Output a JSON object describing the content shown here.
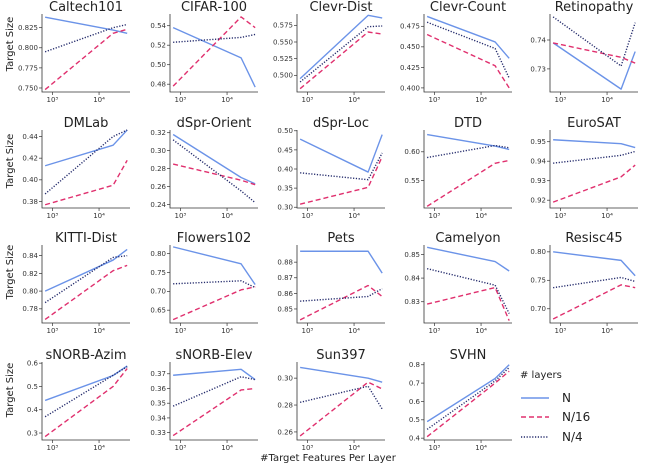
{
  "figure": {
    "ylabel": "Target Size",
    "xlabel": "#Target Features Per Layer",
    "legend_title": "# layers",
    "series": [
      {
        "name": "N",
        "color": "#6B93E8",
        "dash": ""
      },
      {
        "name": "N/16",
        "color": "#E0306E",
        "dash": "5,3"
      },
      {
        "name": "N/4",
        "color": "#232A6B",
        "dash": "1.2,1.6"
      }
    ]
  },
  "chart_data": [
    {
      "type": "line",
      "title": "Caltech101",
      "x": [
        700,
        20000,
        40000
      ],
      "xscale": "log",
      "xticks": [
        "10³",
        "10⁴"
      ],
      "xtick_values": [
        1000,
        10000
      ],
      "ylim": [
        0.745,
        0.842
      ],
      "yticks": [
        0.75,
        0.775,
        0.8,
        0.825
      ],
      "ytick_labels": [
        "0.750",
        "0.775",
        "0.800",
        "0.825"
      ],
      "series": [
        {
          "name": "N",
          "values": [
            0.838,
            0.822,
            0.818
          ]
        },
        {
          "name": "N/16",
          "values": [
            0.748,
            0.818,
            0.823
          ]
        },
        {
          "name": "N/4",
          "values": [
            0.795,
            0.825,
            0.829
          ]
        }
      ]
    },
    {
      "type": "line",
      "title": "CIFAR-100",
      "x": [
        700,
        20000,
        40000
      ],
      "xscale": "log",
      "xticks": [
        "10³",
        "10⁴"
      ],
      "xtick_values": [
        1000,
        10000
      ],
      "ylim": [
        0.472,
        0.552
      ],
      "yticks": [
        0.48,
        0.5,
        0.52,
        0.54
      ],
      "ytick_labels": [
        "0.48",
        "0.50",
        "0.52",
        "0.54"
      ],
      "series": [
        {
          "name": "N",
          "values": [
            0.538,
            0.507,
            0.477
          ]
        },
        {
          "name": "N/16",
          "values": [
            0.478,
            0.549,
            0.538
          ]
        },
        {
          "name": "N/4",
          "values": [
            0.523,
            0.528,
            0.531
          ]
        }
      ]
    },
    {
      "type": "line",
      "title": "Clevr-Dist",
      "x": [
        700,
        20000,
        40000
      ],
      "xscale": "log",
      "xticks": [
        "10³",
        "10⁴"
      ],
      "xtick_values": [
        1000,
        10000
      ],
      "ylim": [
        0.475,
        0.592
      ],
      "yticks": [
        0.5,
        0.525,
        0.55,
        0.575
      ],
      "ytick_labels": [
        "0.500",
        "0.525",
        "0.550",
        "0.575"
      ],
      "series": [
        {
          "name": "N",
          "values": [
            0.495,
            0.59,
            0.586
          ]
        },
        {
          "name": "N/16",
          "values": [
            0.48,
            0.565,
            0.562
          ]
        },
        {
          "name": "N/4",
          "values": [
            0.49,
            0.573,
            0.574
          ]
        }
      ]
    },
    {
      "type": "line",
      "title": "Clevr-Count",
      "x": [
        700,
        20000,
        40000
      ],
      "xscale": "log",
      "xticks": [
        "10³",
        "10⁴"
      ],
      "xtick_values": [
        1000,
        10000
      ],
      "ylim": [
        0.395,
        0.49
      ],
      "yticks": [
        0.4,
        0.425,
        0.45,
        0.475
      ],
      "ytick_labels": [
        "0.400",
        "0.425",
        "0.450",
        "0.475"
      ],
      "series": [
        {
          "name": "N",
          "values": [
            0.487,
            0.456,
            0.436
          ]
        },
        {
          "name": "N/16",
          "values": [
            0.465,
            0.427,
            0.4
          ]
        },
        {
          "name": "N/4",
          "values": [
            0.48,
            0.448,
            0.412
          ]
        }
      ]
    },
    {
      "type": "line",
      "title": "Retinopathy",
      "x": [
        700,
        20000,
        40000
      ],
      "xscale": "log",
      "xticks": [
        "10³",
        "10⁴"
      ],
      "xtick_values": [
        1000,
        10000
      ],
      "ylim": [
        0.722,
        0.749
      ],
      "yticks": [
        0.73,
        0.74
      ],
      "ytick_labels": [
        "0.73",
        "0.74"
      ],
      "series": [
        {
          "name": "N",
          "values": [
            0.739,
            0.723,
            0.736
          ]
        },
        {
          "name": "N/16",
          "values": [
            0.739,
            0.734,
            0.732
          ]
        },
        {
          "name": "N/4",
          "values": [
            0.748,
            0.731,
            0.746
          ]
        }
      ]
    },
    {
      "type": "line",
      "title": "DMLab",
      "x": [
        700,
        20000,
        40000
      ],
      "xscale": "log",
      "xticks": [
        "10³",
        "10⁴"
      ],
      "xtick_values": [
        1000,
        10000
      ],
      "ylim": [
        0.374,
        0.446
      ],
      "yticks": [
        0.38,
        0.4,
        0.42,
        0.44
      ],
      "ytick_labels": [
        "0.38",
        "0.40",
        "0.42",
        "0.44"
      ],
      "series": [
        {
          "name": "N",
          "values": [
            0.413,
            0.432,
            0.446
          ]
        },
        {
          "name": "N/16",
          "values": [
            0.377,
            0.395,
            0.418
          ]
        },
        {
          "name": "N/4",
          "values": [
            0.387,
            0.44,
            0.446
          ]
        }
      ]
    },
    {
      "type": "line",
      "title": "dSpr-Orient",
      "x": [
        700,
        20000,
        40000
      ],
      "xscale": "log",
      "xticks": [
        "10³",
        "10⁴"
      ],
      "xtick_values": [
        1000,
        10000
      ],
      "ylim": [
        0.236,
        0.323
      ],
      "yticks": [
        0.24,
        0.26,
        0.28,
        0.3,
        0.32
      ],
      "ytick_labels": [
        "0.24",
        "0.26",
        "0.28",
        "0.30",
        "0.32"
      ],
      "series": [
        {
          "name": "N",
          "values": [
            0.318,
            0.27,
            0.263
          ]
        },
        {
          "name": "N/16",
          "values": [
            0.285,
            0.267,
            0.262
          ]
        },
        {
          "name": "N/4",
          "values": [
            0.312,
            0.255,
            0.242
          ]
        }
      ]
    },
    {
      "type": "line",
      "title": "dSpr-Loc",
      "x": [
        700,
        20000,
        40000
      ],
      "xscale": "log",
      "xticks": [
        "10³",
        "10⁴"
      ],
      "xtick_values": [
        1000,
        10000
      ],
      "ylim": [
        0.298,
        0.502
      ],
      "yticks": [
        0.3,
        0.35,
        0.4,
        0.45,
        0.5
      ],
      "ytick_labels": [
        "0.30",
        "0.35",
        "0.40",
        "0.45",
        "0.50"
      ],
      "series": [
        {
          "name": "N",
          "values": [
            0.478,
            0.392,
            0.49
          ]
        },
        {
          "name": "N/16",
          "values": [
            0.308,
            0.352,
            0.432
          ]
        },
        {
          "name": "N/4",
          "values": [
            0.39,
            0.372,
            0.442
          ]
        }
      ]
    },
    {
      "type": "line",
      "title": "DTD",
      "x": [
        700,
        20000,
        40000
      ],
      "xscale": "log",
      "xticks": [
        "10³",
        "10⁴"
      ],
      "xtick_values": [
        1000,
        10000
      ],
      "ylim": [
        0.502,
        0.638
      ],
      "yticks": [
        0.55,
        0.6
      ],
      "ytick_labels": [
        "0.55",
        "0.60"
      ],
      "series": [
        {
          "name": "N",
          "values": [
            0.63,
            0.61,
            0.604
          ]
        },
        {
          "name": "N/16",
          "values": [
            0.505,
            0.58,
            0.585
          ]
        },
        {
          "name": "N/4",
          "values": [
            0.59,
            0.611,
            0.607
          ]
        }
      ]
    },
    {
      "type": "line",
      "title": "EuroSAT",
      "x": [
        700,
        20000,
        40000
      ],
      "xscale": "log",
      "xticks": [
        "10³",
        "10⁴"
      ],
      "xtick_values": [
        1000,
        10000
      ],
      "ylim": [
        0.916,
        0.956
      ],
      "yticks": [
        0.92,
        0.93,
        0.94,
        0.95
      ],
      "ytick_labels": [
        "0.92",
        "0.93",
        "0.94",
        "0.95"
      ],
      "series": [
        {
          "name": "N",
          "values": [
            0.951,
            0.949,
            0.947
          ]
        },
        {
          "name": "N/16",
          "values": [
            0.919,
            0.932,
            0.938
          ]
        },
        {
          "name": "N/4",
          "values": [
            0.939,
            0.943,
            0.945
          ]
        }
      ]
    },
    {
      "type": "line",
      "title": "KITTI-Dist",
      "x": [
        700,
        20000,
        40000
      ],
      "xscale": "log",
      "xticks": [
        "10³",
        "10⁴"
      ],
      "xtick_values": [
        1000,
        10000
      ],
      "ylim": [
        0.764,
        0.852
      ],
      "yticks": [
        0.78,
        0.8,
        0.82,
        0.84
      ],
      "ytick_labels": [
        "0.78",
        "0.80",
        "0.82",
        "0.84"
      ],
      "series": [
        {
          "name": "N",
          "values": [
            0.8,
            0.835,
            0.847
          ]
        },
        {
          "name": "N/16",
          "values": [
            0.768,
            0.823,
            0.829
          ]
        },
        {
          "name": "N/4",
          "values": [
            0.787,
            0.838,
            0.84
          ]
        }
      ]
    },
    {
      "type": "line",
      "title": "Flowers102",
      "x": [
        700,
        20000,
        40000
      ],
      "xscale": "log",
      "xticks": [
        "10³",
        "10⁴"
      ],
      "xtick_values": [
        1000,
        10000
      ],
      "ylim": [
        0.616,
        0.823
      ],
      "yticks": [
        0.65,
        0.7,
        0.75,
        0.8
      ],
      "ytick_labels": [
        "0.65",
        "0.70",
        "0.75",
        "0.80"
      ],
      "series": [
        {
          "name": "N",
          "values": [
            0.818,
            0.773,
            0.718
          ]
        },
        {
          "name": "N/16",
          "values": [
            0.625,
            0.704,
            0.712
          ]
        },
        {
          "name": "N/4",
          "values": [
            0.72,
            0.728,
            0.71
          ]
        }
      ]
    },
    {
      "type": "line",
      "title": "Pets",
      "x": [
        700,
        20000,
        40000
      ],
      "xscale": "log",
      "xticks": [
        "10³",
        "10⁴"
      ],
      "xtick_values": [
        1000,
        10000
      ],
      "ylim": [
        0.841,
        0.891
      ],
      "yticks": [
        0.85,
        0.86,
        0.87,
        0.88
      ],
      "ytick_labels": [
        "0.85",
        "0.86",
        "0.87",
        "0.88"
      ],
      "series": [
        {
          "name": "N",
          "values": [
            0.887,
            0.887,
            0.873
          ]
        },
        {
          "name": "N/16",
          "values": [
            0.843,
            0.865,
            0.858
          ]
        },
        {
          "name": "N/4",
          "values": [
            0.855,
            0.858,
            0.863
          ]
        }
      ]
    },
    {
      "type": "line",
      "title": "Camelyon",
      "x": [
        700,
        20000,
        40000
      ],
      "xscale": "log",
      "xticks": [
        "10³",
        "10⁴"
      ],
      "xtick_values": [
        1000,
        10000
      ],
      "ylim": [
        0.821,
        0.854
      ],
      "yticks": [
        0.83,
        0.84,
        0.85
      ],
      "ytick_labels": [
        "0.83",
        "0.84",
        "0.85"
      ],
      "series": [
        {
          "name": "N",
          "values": [
            0.853,
            0.847,
            0.843
          ]
        },
        {
          "name": "N/16",
          "values": [
            0.829,
            0.836,
            0.822
          ]
        },
        {
          "name": "N/4",
          "values": [
            0.844,
            0.837,
            0.825
          ]
        }
      ]
    },
    {
      "type": "line",
      "title": "Resisc45",
      "x": [
        700,
        20000,
        40000
      ],
      "xscale": "log",
      "xticks": [
        "10³",
        "10⁴"
      ],
      "xtick_values": [
        1000,
        10000
      ],
      "ylim": [
        0.675,
        0.812
      ],
      "yticks": [
        0.7,
        0.75,
        0.8
      ],
      "ytick_labels": [
        "0.70",
        "0.75",
        "0.80"
      ],
      "series": [
        {
          "name": "N",
          "values": [
            0.8,
            0.785,
            0.758
          ]
        },
        {
          "name": "N/16",
          "values": [
            0.682,
            0.742,
            0.737
          ]
        },
        {
          "name": "N/4",
          "values": [
            0.737,
            0.755,
            0.748
          ]
        }
      ]
    },
    {
      "type": "line",
      "title": "sNORB-Azim",
      "x": [
        700,
        20000,
        40000
      ],
      "xscale": "log",
      "xticks": [
        "10³",
        "10⁴"
      ],
      "xtick_values": [
        1000,
        10000
      ],
      "ylim": [
        0.27,
        0.605
      ],
      "yticks": [
        0.3,
        0.4,
        0.5,
        0.6
      ],
      "ytick_labels": [
        "0.3",
        "0.4",
        "0.5",
        "0.6"
      ],
      "series": [
        {
          "name": "N",
          "values": [
            0.44,
            0.547,
            0.588
          ]
        },
        {
          "name": "N/16",
          "values": [
            0.285,
            0.5,
            0.577
          ]
        },
        {
          "name": "N/4",
          "values": [
            0.37,
            0.548,
            0.585
          ]
        }
      ]
    },
    {
      "type": "line",
      "title": "sNORB-Elev",
      "x": [
        700,
        20000,
        40000
      ],
      "xscale": "log",
      "xticks": [
        "10³",
        "10⁴"
      ],
      "xtick_values": [
        1000,
        10000
      ],
      "ylim": [
        0.325,
        0.378
      ],
      "yticks": [
        0.33,
        0.34,
        0.35,
        0.36,
        0.37
      ],
      "ytick_labels": [
        "0.33",
        "0.34",
        "0.35",
        "0.36",
        "0.37"
      ],
      "series": [
        {
          "name": "N",
          "values": [
            0.369,
            0.373,
            0.366
          ]
        },
        {
          "name": "N/16",
          "values": [
            0.328,
            0.359,
            0.36
          ]
        },
        {
          "name": "N/4",
          "values": [
            0.348,
            0.368,
            0.366
          ]
        }
      ]
    },
    {
      "type": "line",
      "title": "Sun397",
      "x": [
        700,
        20000,
        40000
      ],
      "xscale": "log",
      "xticks": [
        "10³",
        "10⁴"
      ],
      "xtick_values": [
        1000,
        10000
      ],
      "ylim": [
        0.254,
        0.312
      ],
      "yticks": [
        0.26,
        0.28,
        0.3
      ],
      "ytick_labels": [
        "0.26",
        "0.28",
        "0.30"
      ],
      "series": [
        {
          "name": "N",
          "values": [
            0.308,
            0.3,
            0.297
          ]
        },
        {
          "name": "N/16",
          "values": [
            0.257,
            0.297,
            0.292
          ]
        },
        {
          "name": "N/4",
          "values": [
            0.282,
            0.294,
            0.277
          ]
        }
      ]
    },
    {
      "type": "line",
      "title": "SVHN",
      "x": [
        700,
        20000,
        40000
      ],
      "xscale": "log",
      "xticks": [
        "10³",
        "10⁴"
      ],
      "xtick_values": [
        1000,
        10000
      ],
      "ylim": [
        0.39,
        0.815
      ],
      "yticks": [
        0.4,
        0.5,
        0.6,
        0.7,
        0.8
      ],
      "ytick_labels": [
        "0.4",
        "0.5",
        "0.6",
        "0.7",
        "0.8"
      ],
      "series": [
        {
          "name": "N",
          "values": [
            0.49,
            0.725,
            0.8
          ]
        },
        {
          "name": "N/16",
          "values": [
            0.408,
            0.7,
            0.765
          ]
        },
        {
          "name": "N/4",
          "values": [
            0.448,
            0.712,
            0.785
          ]
        }
      ]
    }
  ]
}
